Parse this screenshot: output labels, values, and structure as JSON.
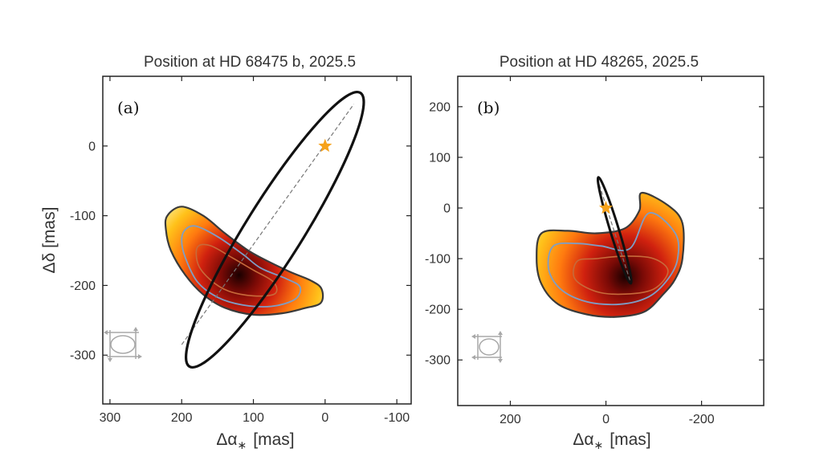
{
  "figure": {
    "colors": {
      "frame": "#222222",
      "ellipse": "#111111",
      "line": "#777777",
      "star": "#f6a21b",
      "contour_outer": "#3a3a3a",
      "contour_mid": "#7e9ec6",
      "contour_inner": "#c76a3a",
      "compass": "#a8a8a8"
    }
  },
  "chart_data": [
    {
      "id": "a",
      "type": "contour",
      "title": "Position at HD 68475 b, 2025.5",
      "panel_label": "(a)",
      "xlabel": "Δα",
      "xlabel_sub": "∗",
      "xlabel_unit": "[mas]",
      "ylabel": "Δδ [mas]",
      "xlim": [
        310,
        -120
      ],
      "ylim": [
        -370,
        100
      ],
      "x_ticks": [
        300,
        200,
        100,
        0,
        -100
      ],
      "x_tick_labels": [
        "300",
        "200",
        "100",
        "0",
        "-100"
      ],
      "y_ticks": [
        0,
        -100,
        -200,
        -300
      ],
      "y_tick_labels": [
        "0",
        "-100",
        "-200",
        "-300"
      ],
      "host_star": [
        0,
        0
      ],
      "predicted_ellipse": {
        "center": [
          70,
          -120
        ],
        "semi_major": 225,
        "semi_minor": 40,
        "angle_deg": 58
      },
      "line_of_nodes": [
        [
          200,
          -285
        ],
        [
          -40,
          60
        ]
      ],
      "companion_density": {
        "peak": [
          120,
          -185
        ],
        "outer": [
          [
            220,
            -100
          ],
          [
            200,
            -87
          ],
          [
            170,
            -100
          ],
          [
            140,
            -125
          ],
          [
            110,
            -148
          ],
          [
            90,
            -160
          ],
          [
            50,
            -180
          ],
          [
            20,
            -193
          ],
          [
            5,
            -205
          ],
          [
            6,
            -225
          ],
          [
            30,
            -233
          ],
          [
            60,
            -240
          ],
          [
            100,
            -242
          ],
          [
            140,
            -232
          ],
          [
            170,
            -213
          ],
          [
            195,
            -185
          ],
          [
            215,
            -150
          ],
          [
            222,
            -120
          ]
        ],
        "mid": [
          [
            195,
            -120
          ],
          [
            180,
            -115
          ],
          [
            150,
            -130
          ],
          [
            115,
            -155
          ],
          [
            90,
            -175
          ],
          [
            55,
            -190
          ],
          [
            35,
            -202
          ],
          [
            42,
            -220
          ],
          [
            75,
            -230
          ],
          [
            115,
            -228
          ],
          [
            150,
            -217
          ],
          [
            178,
            -195
          ],
          [
            195,
            -160
          ],
          [
            200,
            -135
          ]
        ],
        "inner": [
          [
            178,
            -145
          ],
          [
            160,
            -143
          ],
          [
            130,
            -160
          ],
          [
            100,
            -178
          ],
          [
            72,
            -195
          ],
          [
            70,
            -212
          ],
          [
            100,
            -215
          ],
          [
            135,
            -208
          ],
          [
            160,
            -192
          ],
          [
            177,
            -170
          ]
        ]
      }
    },
    {
      "id": "b",
      "type": "contour",
      "title": "Position at HD 48265, 2025.5",
      "panel_label": "(b)",
      "xlabel": "Δα",
      "xlabel_sub": "∗",
      "xlabel_unit": "[mas]",
      "ylabel": "",
      "xlim": [
        310,
        -330
      ],
      "ylim": [
        -390,
        260
      ],
      "x_ticks": [
        200,
        0,
        -200
      ],
      "x_tick_labels": [
        "200",
        "0",
        "-200"
      ],
      "y_ticks": [
        200,
        100,
        0,
        -100,
        -200,
        -300
      ],
      "y_tick_labels": [
        "200",
        "100",
        "0",
        "-100",
        "-200",
        "-300"
      ],
      "host_star": [
        0,
        0
      ],
      "predicted_ellipse": {
        "center": [
          -18,
          -44
        ],
        "semi_major": 116,
        "semi_minor": 9,
        "angle_deg": -73
      },
      "line_of_nodes": [
        [
          18,
          58
        ],
        [
          -52,
          -148
        ]
      ],
      "companion_density": {
        "peak": [
          -40,
          -135
        ],
        "outer": [
          [
            135,
            -50
          ],
          [
            80,
            -45
          ],
          [
            20,
            -50
          ],
          [
            -40,
            -40
          ],
          [
            -70,
            -5
          ],
          [
            -75,
            30
          ],
          [
            -130,
            5
          ],
          [
            -160,
            -30
          ],
          [
            -160,
            -100
          ],
          [
            -145,
            -140
          ],
          [
            -120,
            -170
          ],
          [
            -80,
            -205
          ],
          [
            -20,
            -215
          ],
          [
            40,
            -210
          ],
          [
            100,
            -190
          ],
          [
            135,
            -150
          ],
          [
            145,
            -100
          ]
        ],
        "mid": [
          [
            110,
            -75
          ],
          [
            60,
            -70
          ],
          [
            10,
            -75
          ],
          [
            -50,
            -80
          ],
          [
            -90,
            -10
          ],
          [
            -145,
            -50
          ],
          [
            -150,
            -100
          ],
          [
            -130,
            -140
          ],
          [
            -90,
            -175
          ],
          [
            -30,
            -190
          ],
          [
            40,
            -185
          ],
          [
            95,
            -160
          ],
          [
            120,
            -120
          ]
        ],
        "inner": [
          [
            60,
            -105
          ],
          [
            20,
            -100
          ],
          [
            -40,
            -95
          ],
          [
            -100,
            -100
          ],
          [
            -130,
            -125
          ],
          [
            -100,
            -160
          ],
          [
            -40,
            -170
          ],
          [
            20,
            -165
          ],
          [
            65,
            -140
          ]
        ]
      }
    }
  ]
}
